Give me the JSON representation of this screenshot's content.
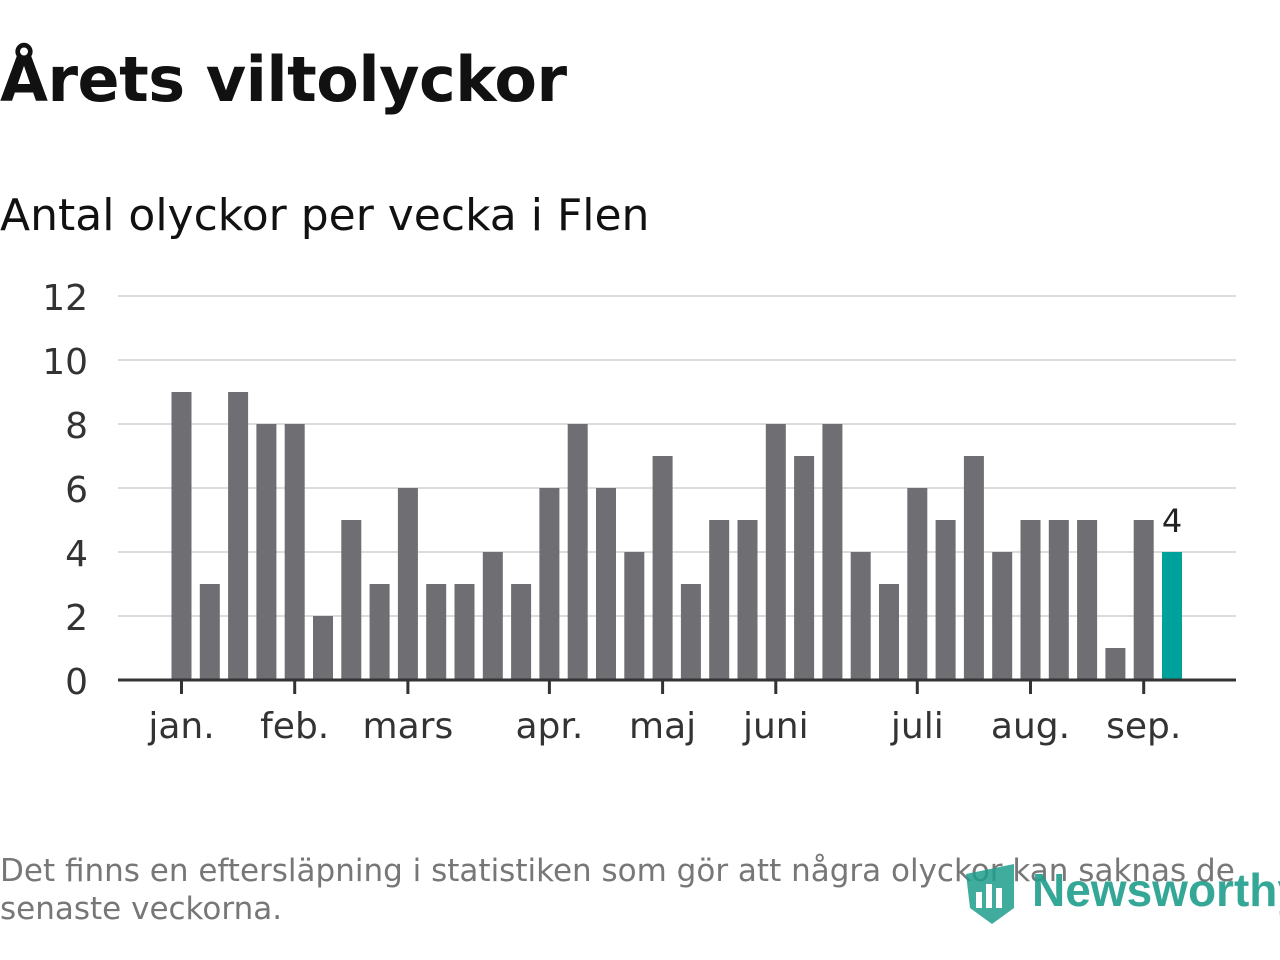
{
  "title": "Årets viltolyckor",
  "subtitle": "Antal olyckor per vecka i Flen",
  "footnote": "Det finns en eftersläpning i statistiken som gör att några olyckor kan saknas de senaste veckorna.",
  "logo": {
    "text": "Newsworthy",
    "icon": "bar-chart-shield-icon"
  },
  "colors": {
    "bar": "#6e6e73",
    "highlight": "#00a19a",
    "grid": "#dcdcdc",
    "axis": "#333333",
    "logo": "#1f9e8c"
  },
  "chart_data": {
    "type": "bar",
    "title": "Antal olyckor per vecka i Flen",
    "xlabel": "",
    "ylabel": "",
    "ylim": [
      0,
      12
    ],
    "yticks": [
      0,
      2,
      4,
      6,
      8,
      10,
      12
    ],
    "grid": true,
    "values": [
      9,
      3,
      9,
      8,
      8,
      2,
      5,
      3,
      6,
      3,
      3,
      4,
      3,
      6,
      8,
      6,
      4,
      7,
      3,
      5,
      5,
      8,
      7,
      8,
      4,
      3,
      6,
      5,
      7,
      4,
      5,
      5,
      5,
      1,
      5,
      4
    ],
    "highlight_index": 35,
    "highlight_label": "4",
    "month_labels": [
      {
        "label": "jan.",
        "week_index": 0
      },
      {
        "label": "feb.",
        "week_index": 4
      },
      {
        "label": "mars",
        "week_index": 8
      },
      {
        "label": "apr.",
        "week_index": 13
      },
      {
        "label": "maj",
        "week_index": 17
      },
      {
        "label": "juni",
        "week_index": 21
      },
      {
        "label": "juli",
        "week_index": 26
      },
      {
        "label": "aug.",
        "week_index": 30
      },
      {
        "label": "sep.",
        "week_index": 34
      }
    ]
  }
}
